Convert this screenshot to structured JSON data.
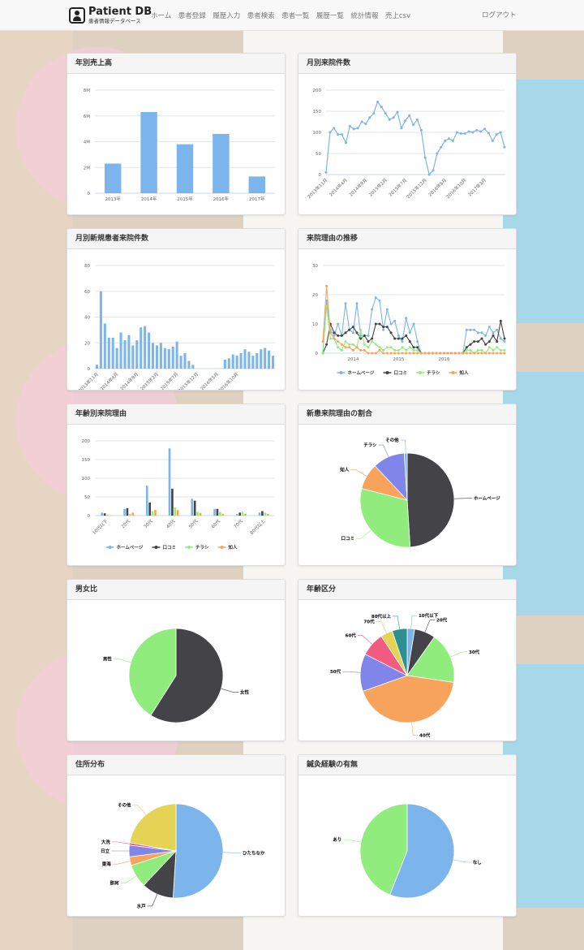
{
  "navbar": {
    "brand_title": "Patient DB",
    "brand_subtitle": "患者情報データベース",
    "links": [
      "ホーム",
      "患者登録",
      "履歴入力",
      "患者検索",
      "患者一覧",
      "履歴一覧",
      "統計情報",
      "売上csv"
    ],
    "logout": "ログアウト"
  },
  "colors": {
    "blue": "#7cb5ec",
    "dark": "#434348",
    "green": "#90ed7d",
    "orange": "#f7a35c",
    "purple": "#8085e9",
    "pink": "#f15c80",
    "yellow": "#e4d354",
    "teal": "#2b908f",
    "red": "#f45b5b"
  },
  "chart_data": [
    {
      "id": "annual-sales",
      "type": "bar",
      "title": "年別売上高",
      "categories": [
        "2013年",
        "2014年",
        "2015年",
        "2016年",
        "2017年"
      ],
      "values": [
        2300000,
        6300000,
        3800000,
        4600000,
        1300000
      ],
      "yticks": [
        "0",
        "2M",
        "4M",
        "6M",
        "8M"
      ],
      "ylim": [
        0,
        8000000
      ],
      "color": "#7cb5ec"
    },
    {
      "id": "monthly-visits",
      "type": "line",
      "title": "月別来院件数",
      "xticks": [
        "2013年11月",
        "2014年4月",
        "2014年9月",
        "2015年2月",
        "2015年7月",
        "2015年12月",
        "2016年5月",
        "2016年10月",
        "2017年3月"
      ],
      "xtick_index": [
        0,
        5,
        10,
        15,
        20,
        25,
        30,
        35,
        40
      ],
      "values": [
        5,
        100,
        110,
        95,
        95,
        75,
        115,
        108,
        110,
        125,
        120,
        135,
        145,
        172,
        160,
        145,
        130,
        135,
        148,
        110,
        128,
        140,
        118,
        130,
        105,
        40,
        0,
        10,
        50,
        65,
        80,
        85,
        80,
        100,
        97,
        97,
        102,
        100,
        105,
        102,
        108,
        98,
        80,
        95,
        100,
        65
      ],
      "yticks": [
        "0",
        "50",
        "100",
        "150",
        "200"
      ],
      "ylim": [
        0,
        200
      ],
      "color": "#7cb5ec"
    },
    {
      "id": "monthly-new-patients",
      "type": "bar",
      "title": "月別新規患者来院件数",
      "xticks": [
        "2013年11月",
        "2014年4月",
        "2014年9月",
        "2015年2月",
        "2015年7月",
        "2015年12月",
        "2016年5月",
        "2016年10月"
      ],
      "xtick_index": [
        0,
        5,
        10,
        15,
        20,
        25,
        30,
        35
      ],
      "values": [
        3,
        60,
        35,
        24,
        24,
        16,
        28,
        22,
        26,
        18,
        22,
        32,
        33,
        28,
        20,
        18,
        20,
        16,
        15,
        17,
        21,
        10,
        12,
        6,
        3,
        0,
        0,
        0,
        0,
        0,
        0,
        0,
        7,
        8,
        11,
        10,
        12,
        15,
        13,
        10,
        12,
        15,
        16,
        14,
        10
      ],
      "yticks": [
        "0",
        "20",
        "40",
        "60",
        "80"
      ],
      "ylim": [
        0,
        80
      ],
      "color": "#7cb5ec"
    },
    {
      "id": "visit-reason-trend",
      "type": "line",
      "title": "来院理由の推移",
      "xticks": [
        "2014",
        "2015",
        "2016"
      ],
      "xtick_index": [
        8,
        20,
        32
      ],
      "yticks": [
        "0",
        "10",
        "20",
        "30"
      ],
      "ylim": [
        0,
        30
      ],
      "series": [
        {
          "name": "ホームページ",
          "color": "#7cb5ec",
          "values": [
            0,
            18,
            8,
            6,
            10,
            6,
            17,
            8,
            7,
            17,
            6,
            6,
            6,
            15,
            19,
            18,
            8,
            15,
            10,
            11,
            6,
            4,
            12,
            7,
            10,
            4,
            0,
            0,
            0,
            0,
            0,
            0,
            0,
            0,
            0,
            0,
            0,
            0,
            8,
            8,
            8,
            7,
            7,
            6,
            9,
            7,
            8,
            5,
            4
          ]
        },
        {
          "name": "口コミ",
          "color": "#434348",
          "values": [
            0,
            3,
            10,
            7,
            6,
            6,
            7,
            8,
            9,
            7,
            5,
            6,
            4,
            5,
            10,
            10,
            9,
            9,
            7,
            5,
            5,
            5,
            6,
            4,
            2,
            2,
            0,
            0,
            0,
            0,
            0,
            0,
            0,
            0,
            0,
            0,
            0,
            0,
            2,
            3,
            4,
            4,
            5,
            3,
            4,
            6,
            4,
            11,
            5
          ]
        },
        {
          "name": "チラシ",
          "color": "#90ed7d",
          "values": [
            0,
            16,
            5,
            5,
            2,
            1,
            4,
            3,
            3,
            2,
            8,
            3,
            2,
            4,
            3,
            2,
            1,
            2,
            2,
            1,
            1,
            2,
            1,
            2,
            1,
            1,
            0,
            0,
            0,
            0,
            0,
            0,
            0,
            0,
            0,
            0,
            0,
            0,
            1,
            1,
            0,
            1,
            1,
            0,
            2,
            1,
            2,
            1,
            1
          ]
        },
        {
          "name": "知人",
          "color": "#f7a35c",
          "values": [
            4,
            23,
            7,
            5,
            4,
            3,
            2,
            2,
            1,
            2,
            1,
            1,
            0,
            0,
            0,
            1,
            0,
            0,
            0,
            0,
            0,
            0,
            0,
            0,
            0,
            0,
            0,
            0,
            0,
            0,
            0,
            0,
            0,
            0,
            0,
            0,
            0,
            0,
            0,
            0,
            0,
            0,
            0,
            0,
            0,
            0,
            0,
            0,
            0
          ]
        }
      ]
    },
    {
      "id": "reason-by-age",
      "type": "bar",
      "title": "年齢別来院理由",
      "categories": [
        "10代以下",
        "20代",
        "30代",
        "40代",
        "50代",
        "60代",
        "70代",
        "80代以上"
      ],
      "yticks": [
        "0",
        "50",
        "100",
        "150",
        "200"
      ],
      "ylim": [
        0,
        200
      ],
      "series": [
        {
          "name": "ホームページ",
          "color": "#7cb5ec",
          "values": [
            8,
            18,
            80,
            180,
            45,
            18,
            4,
            8
          ]
        },
        {
          "name": "口コミ",
          "color": "#434348",
          "values": [
            6,
            20,
            35,
            72,
            40,
            18,
            8,
            12
          ]
        },
        {
          "name": "チラシ",
          "color": "#90ed7d",
          "values": [
            2,
            5,
            12,
            22,
            10,
            10,
            10,
            8
          ]
        },
        {
          "name": "知人",
          "color": "#f7a35c",
          "values": [
            1,
            8,
            15,
            15,
            7,
            5,
            5,
            5
          ]
        }
      ]
    },
    {
      "id": "new-reason-share",
      "type": "pie",
      "title": "新患来院理由の割合",
      "slices": [
        {
          "name": "ホームページ",
          "value": 49,
          "color": "#434348"
        },
        {
          "name": "口コミ",
          "value": 30,
          "color": "#90ed7d"
        },
        {
          "name": "知人",
          "value": 9,
          "color": "#f7a35c"
        },
        {
          "name": "チラシ",
          "value": 11,
          "color": "#8085e9"
        },
        {
          "name": "その他",
          "value": 1,
          "color": "#7cb5ec"
        }
      ]
    },
    {
      "id": "gender-ratio",
      "type": "pie",
      "title": "男女比",
      "slices": [
        {
          "name": "女性",
          "value": 59,
          "color": "#434348"
        },
        {
          "name": "男性",
          "value": 41,
          "color": "#90ed7d"
        }
      ]
    },
    {
      "id": "age-groups",
      "type": "pie",
      "title": "年齢区分",
      "slices": [
        {
          "name": "10代以下",
          "value": 2.5,
          "color": "#7cb5ec"
        },
        {
          "name": "20代",
          "value": 7,
          "color": "#434348"
        },
        {
          "name": "30代",
          "value": 17,
          "color": "#90ed7d"
        },
        {
          "name": "40代",
          "value": 41,
          "color": "#f7a35c"
        },
        {
          "name": "50代",
          "value": 12.5,
          "color": "#8085e9"
        },
        {
          "name": "60代",
          "value": 8,
          "color": "#f15c80"
        },
        {
          "name": "70代",
          "value": 4,
          "color": "#e4d354"
        },
        {
          "name": "80代以上",
          "value": 5,
          "color": "#2b908f"
        }
      ]
    },
    {
      "id": "address-distribution",
      "type": "pie",
      "title": "住所分布",
      "slices": [
        {
          "name": "ひたちなか",
          "value": 51,
          "color": "#7cb5ec"
        },
        {
          "name": "水戸",
          "value": 11,
          "color": "#434348"
        },
        {
          "name": "那珂",
          "value": 8,
          "color": "#90ed7d"
        },
        {
          "name": "東海",
          "value": 3,
          "color": "#f7a35c"
        },
        {
          "name": "日立",
          "value": 4,
          "color": "#8085e9"
        },
        {
          "name": "大洗",
          "value": 0.8,
          "color": "#f15c80"
        },
        {
          "name": "その他",
          "value": 22.2,
          "color": "#e4d354"
        }
      ]
    },
    {
      "id": "acupuncture-experience",
      "type": "pie",
      "title": "鍼灸経験の有無",
      "slices": [
        {
          "name": "なし",
          "value": 56,
          "color": "#7cb5ec"
        },
        {
          "name": "あり",
          "value": 44,
          "color": "#90ed7d"
        }
      ]
    }
  ]
}
